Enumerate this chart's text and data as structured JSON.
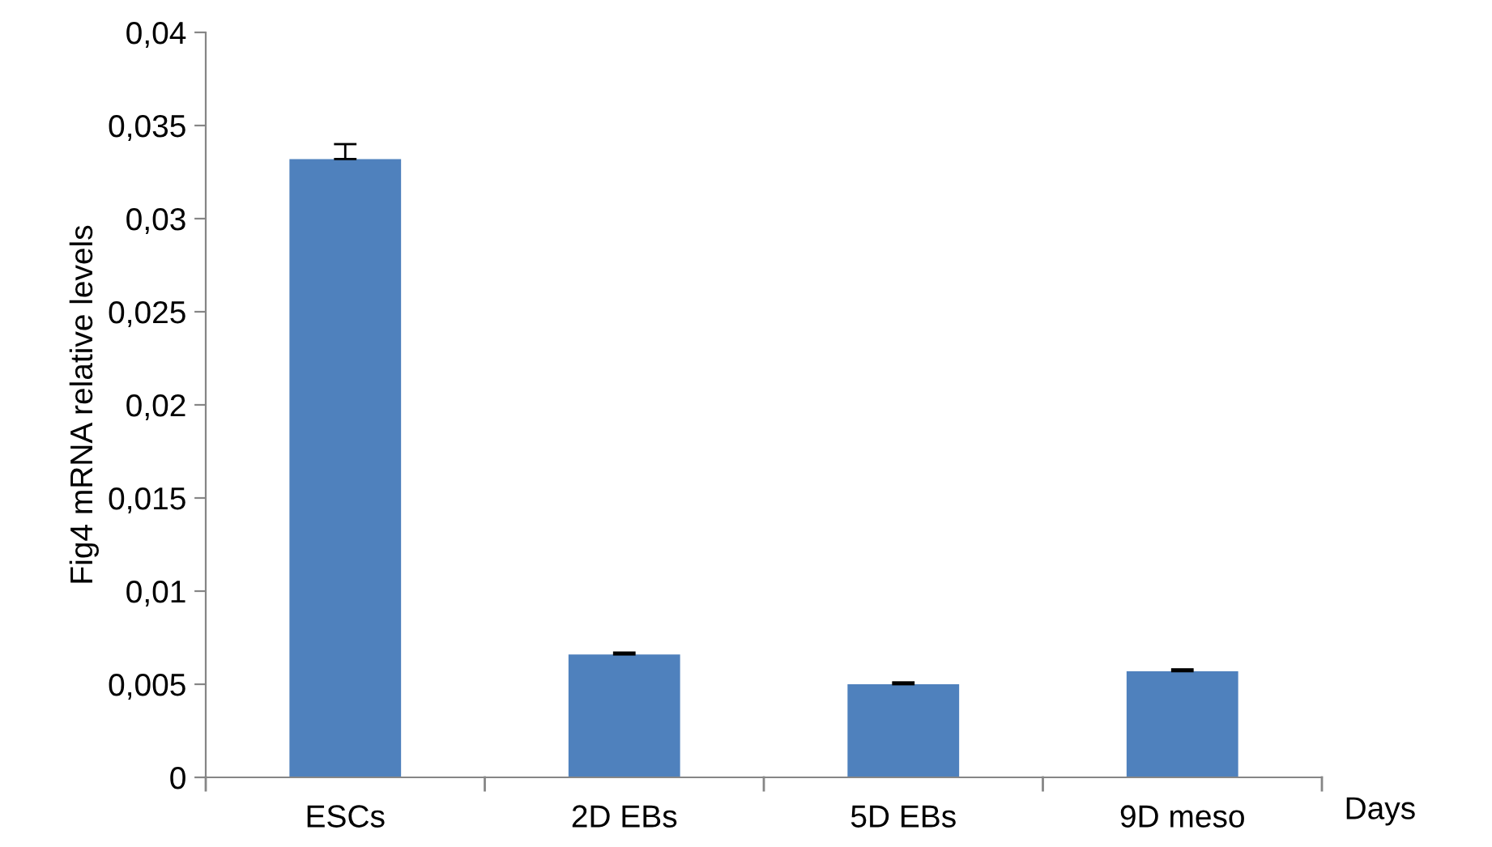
{
  "chart_data": {
    "type": "bar",
    "xlabel": "Days",
    "ylabel": "Fig4 mRNA relative levels",
    "categories": [
      "ESCs",
      "2D EBs",
      "5D EBs",
      "9D meso"
    ],
    "values": [
      0.0332,
      0.0066,
      0.005,
      0.0057
    ],
    "errors": [
      [
        0.0332,
        0.034
      ],
      [
        0.0066,
        0.0067
      ],
      [
        0.005,
        0.0051
      ],
      [
        0.0057,
        0.0058
      ]
    ],
    "color": "#4f81bd",
    "ylim": [
      0,
      0.04
    ],
    "yticks": [
      {
        "value": 0,
        "label": "0"
      },
      {
        "value": 0.005,
        "label": "0,005"
      },
      {
        "value": 0.01,
        "label": "0,01"
      },
      {
        "value": 0.015,
        "label": "0,015"
      },
      {
        "value": 0.02,
        "label": "0,02"
      },
      {
        "value": 0.025,
        "label": "0,025"
      },
      {
        "value": 0.03,
        "label": "0,03"
      },
      {
        "value": 0.035,
        "label": "0,035"
      },
      {
        "value": 0.04,
        "label": "0,04"
      }
    ],
    "grid": false
  }
}
